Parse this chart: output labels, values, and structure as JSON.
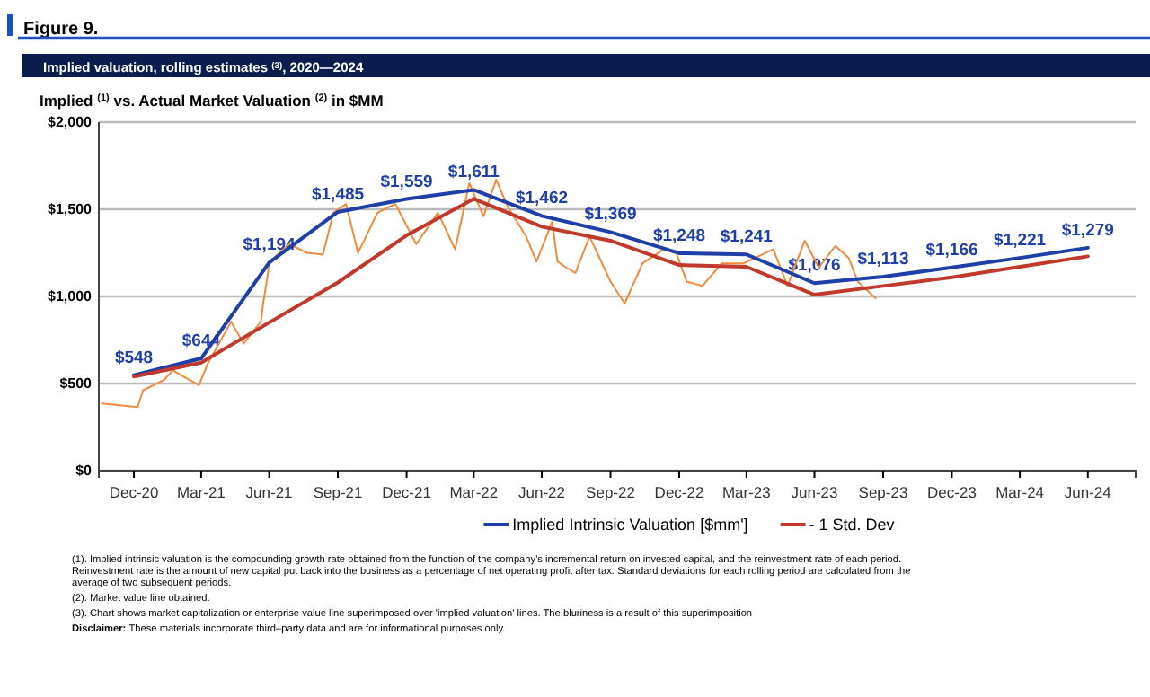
{
  "chart_data": {
    "type": "line",
    "title": "Implied valuation, rolling estimates $^{(3)}$, 2020—2024",
    "subtitle": "Implied $^{(1)}$ vs. Actual Market Valuation $^{(2)}$ in $MM",
    "annotations": [
      "Figure 9.",
      "(1). Implied intrinsic valuation is the compounding growth rate obtained from the function of the company's incremental return on invested capital, and the reinvestment rate of each period. Reinvestment rate is the amount of new capital put back into the business as a percentage of net operating profit after tax. Standard deviations for each rolling period are calculated from the average of two subsequent periods.",
      "(2). Market value line obtained.",
      "(3). Chart shows market capitalization or enterprise value line superimposed over 'implied valuation' lines. The bluriness is a result of this superimposition",
      "Disclaimer: These materials incorporate third–party data and are for informational purposes only."
    ],
    "x": [
      "2020-12-31",
      "2021-03-31",
      "2021-06-30",
      "2021-09-30",
      "2021-12-31",
      "2022-03-31",
      "2022-06-30",
      "2022-09-30",
      "2022-12-31",
      "2023-03-31",
      "2023-06-30",
      "2023-09-30",
      "2023-12-31",
      "2024-03-31",
      "2024-06-30"
    ],
    "xlim": [
      "2020-11-14",
      "2024-09-02"
    ],
    "xticks": [
      {
        "value": "2020-12-31",
        "label": "Dec-20"
      },
      {
        "value": "2021-03-31",
        "label": "Mar-21"
      },
      {
        "value": "2021-06-30",
        "label": "Jun-21"
      },
      {
        "value": "2021-09-30",
        "label": "Sep-21"
      },
      {
        "value": "2021-12-31",
        "label": "Dec-21"
      },
      {
        "value": "2022-03-31",
        "label": "Mar-22"
      },
      {
        "value": "2022-06-30",
        "label": "Jun-22"
      },
      {
        "value": "2022-09-30",
        "label": "Sep-22"
      },
      {
        "value": "2022-12-31",
        "label": "Dec-22"
      },
      {
        "value": "2023-03-31",
        "label": "Mar-23"
      },
      {
        "value": "2023-06-30",
        "label": "Jun-23"
      },
      {
        "value": "2023-09-30",
        "label": "Sep-23"
      },
      {
        "value": "2023-12-31",
        "label": "Dec-23"
      },
      {
        "value": "2024-03-31",
        "label": "Mar-24"
      },
      {
        "value": "2024-06-30",
        "label": "Jun-24"
      }
    ],
    "ylim": [
      0,
      2000
    ],
    "yticks": [
      {
        "value": 0,
        "label": "$0"
      },
      {
        "value": 500,
        "label": "$500"
      },
      {
        "value": 1000,
        "label": "$1,000"
      },
      {
        "value": 1500,
        "label": "$1,500"
      },
      {
        "value": 2000,
        "label": "$2,000"
      }
    ],
    "grid": "y",
    "legend": "bottom",
    "marker": "none",
    "series": [
      {
        "color": "#f08a3c",
        "x": [
          "2020-11-18",
          "2021-01-05",
          "2021-01-12",
          "2021-02-09",
          "2021-02-21",
          "2021-03-28",
          "2021-04-09",
          "2021-05-10",
          "2021-05-27",
          "2021-06-19",
          "2021-06-22",
          "2021-07-01",
          "2021-07-27",
          "2021-08-20",
          "2021-09-10",
          "2021-09-24",
          "2021-10-11",
          "2021-10-27",
          "2021-11-22",
          "2021-12-16",
          "2022-01-13",
          "2022-02-11",
          "2022-03-06",
          "2022-03-25",
          "2022-04-13",
          "2022-04-30",
          "2022-05-16",
          "2022-06-09",
          "2022-06-23",
          "2022-07-14",
          "2022-07-21",
          "2022-08-02",
          "2022-08-14",
          "2022-09-02",
          "2022-09-30",
          "2022-10-19",
          "2022-11-12",
          "2022-12-10",
          "2022-12-27",
          "2023-01-10",
          "2023-01-31",
          "2023-02-26",
          "2023-03-27",
          "2023-05-06",
          "2023-05-25",
          "2023-06-17",
          "2023-07-06",
          "2023-07-28",
          "2023-08-15",
          "2023-08-27",
          "2023-09-20"
        ],
        "values": [
          385,
          365,
          460,
          520,
          575,
          490,
          615,
          855,
          730,
          855,
          960,
          1200,
          1300,
          1250,
          1240,
          1480,
          1530,
          1250,
          1480,
          1530,
          1300,
          1480,
          1270,
          1650,
          1460,
          1670,
          1510,
          1345,
          1200,
          1430,
          1200,
          1165,
          1135,
          1345,
          1085,
          960,
          1190,
          1270,
          1250,
          1085,
          1060,
          1190,
          1190,
          1270,
          1060,
          1320,
          1165,
          1290,
          1220,
          1085,
          990
        ]
      },
      {
        "name": "Implied Intrinsic Valuation [$mm']",
        "color": "#1f3fa8",
        "values": [
          548,
          644,
          1194,
          1485,
          1559,
          1611,
          1462,
          1369,
          1248,
          1241,
          1076,
          1113,
          1166,
          1221,
          1279
        ],
        "value_labels": [
          "$548",
          "$644",
          "$1,194",
          "$1,485",
          "$1,559",
          "$1,611",
          "$1,462",
          "$1,369",
          "$1,248",
          "$1,241",
          "$1,076",
          "$1,113",
          "$1,166",
          "$1,221",
          "$1,279"
        ]
      },
      {
        "name": "- 1 Std. Dev",
        "color": "#c0392b",
        "values": [
          540,
          620,
          850,
          1080,
          1350,
          1560,
          1400,
          1320,
          1180,
          1170,
          1010,
          1060,
          1110,
          1170,
          1230
        ]
      }
    ]
  }
}
